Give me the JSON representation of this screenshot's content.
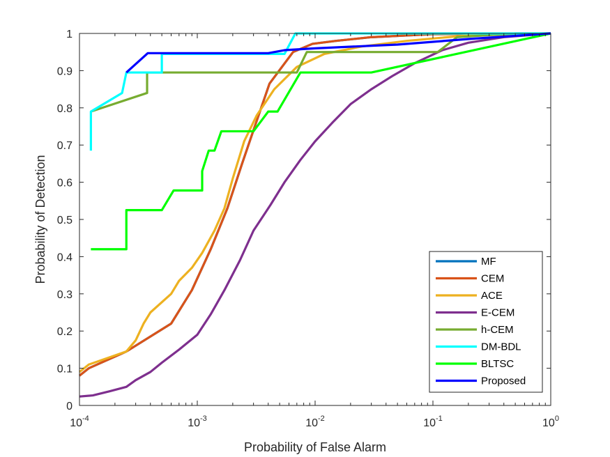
{
  "chart_data": {
    "type": "line",
    "title": "",
    "xlabel": "Probability of False Alarm",
    "ylabel": "Probability of Detection",
    "xscale": "log",
    "xlim": [
      0.0001,
      1
    ],
    "ylim": [
      0,
      1
    ],
    "grid": false,
    "legend_position": "bottom-right",
    "x_ticks": [
      {
        "base": "10",
        "exp": "-4"
      },
      {
        "base": "10",
        "exp": "-3"
      },
      {
        "base": "10",
        "exp": "-2"
      },
      {
        "base": "10",
        "exp": "-1"
      },
      {
        "base": "10",
        "exp": "0"
      }
    ],
    "x_tick_values": [
      0.0001,
      0.001,
      0.01,
      0.1,
      1
    ],
    "y_ticks": [
      "0",
      "0.1",
      "0.2",
      "0.3",
      "0.4",
      "0.5",
      "0.6",
      "0.7",
      "0.8",
      "0.9",
      "1"
    ],
    "y_tick_values": [
      0,
      0.1,
      0.2,
      0.3,
      0.4,
      0.5,
      0.6,
      0.7,
      0.8,
      0.9,
      1
    ],
    "series": [
      {
        "name": "MF",
        "color": "#0072BD",
        "points": [
          [
            0.0001,
            0.08
          ],
          [
            0.00012,
            0.1
          ],
          [
            0.00025,
            0.145
          ],
          [
            0.0006,
            0.22
          ],
          [
            0.0009,
            0.31
          ],
          [
            0.0013,
            0.42
          ],
          [
            0.0018,
            0.53
          ],
          [
            0.0024,
            0.65
          ],
          [
            0.003,
            0.74
          ],
          [
            0.0041,
            0.865
          ],
          [
            0.0065,
            0.95
          ],
          [
            0.0095,
            0.972
          ],
          [
            0.015,
            0.98
          ],
          [
            0.03,
            0.99
          ],
          [
            0.1,
            0.998
          ],
          [
            1,
            1
          ]
        ]
      },
      {
        "name": "CEM",
        "color": "#D95319",
        "points": [
          [
            0.0001,
            0.08
          ],
          [
            0.00012,
            0.1
          ],
          [
            0.00025,
            0.145
          ],
          [
            0.0006,
            0.22
          ],
          [
            0.0009,
            0.31
          ],
          [
            0.0013,
            0.42
          ],
          [
            0.0018,
            0.53
          ],
          [
            0.0024,
            0.65
          ],
          [
            0.003,
            0.74
          ],
          [
            0.0041,
            0.865
          ],
          [
            0.0065,
            0.95
          ],
          [
            0.0095,
            0.972
          ],
          [
            0.015,
            0.98
          ],
          [
            0.03,
            0.99
          ],
          [
            0.1,
            0.998
          ],
          [
            1,
            1
          ]
        ]
      },
      {
        "name": "ACE",
        "color": "#EDB120",
        "points": [
          [
            0.0001,
            0.09
          ],
          [
            0.00012,
            0.11
          ],
          [
            0.00025,
            0.145
          ],
          [
            0.0003,
            0.175
          ],
          [
            0.00035,
            0.22
          ],
          [
            0.0004,
            0.25
          ],
          [
            0.0006,
            0.3
          ],
          [
            0.0007,
            0.335
          ],
          [
            0.0009,
            0.37
          ],
          [
            0.0011,
            0.41
          ],
          [
            0.0014,
            0.47
          ],
          [
            0.0017,
            0.53
          ],
          [
            0.002,
            0.61
          ],
          [
            0.0025,
            0.71
          ],
          [
            0.0032,
            0.78
          ],
          [
            0.0045,
            0.85
          ],
          [
            0.007,
            0.91
          ],
          [
            0.012,
            0.945
          ],
          [
            0.025,
            0.965
          ],
          [
            0.06,
            0.98
          ],
          [
            0.2,
            0.995
          ],
          [
            1,
            1
          ]
        ]
      },
      {
        "name": "E-CEM",
        "color": "#7E2F8E",
        "points": [
          [
            0.0001,
            0.024
          ],
          [
            0.00013,
            0.027
          ],
          [
            0.00018,
            0.038
          ],
          [
            0.00025,
            0.05
          ],
          [
            0.0003,
            0.068
          ],
          [
            0.0004,
            0.09
          ],
          [
            0.0005,
            0.115
          ],
          [
            0.0007,
            0.15
          ],
          [
            0.001,
            0.19
          ],
          [
            0.0013,
            0.245
          ],
          [
            0.0017,
            0.31
          ],
          [
            0.0023,
            0.39
          ],
          [
            0.003,
            0.47
          ],
          [
            0.0042,
            0.54
          ],
          [
            0.0055,
            0.6
          ],
          [
            0.0075,
            0.66
          ],
          [
            0.01,
            0.71
          ],
          [
            0.014,
            0.76
          ],
          [
            0.02,
            0.81
          ],
          [
            0.03,
            0.85
          ],
          [
            0.045,
            0.885
          ],
          [
            0.07,
            0.92
          ],
          [
            0.12,
            0.955
          ],
          [
            0.2,
            0.975
          ],
          [
            0.4,
            0.99
          ],
          [
            1,
            1
          ]
        ]
      },
      {
        "name": "h-CEM",
        "color": "#77AC30",
        "points": [
          [
            0.000125,
            0.79
          ],
          [
            0.000375,
            0.84
          ],
          [
            0.000375,
            0.895
          ],
          [
            0.007,
            0.895
          ],
          [
            0.0085,
            0.95
          ],
          [
            0.11,
            0.95
          ],
          [
            0.16,
            0.99
          ],
          [
            0.5,
            1
          ],
          [
            1,
            1
          ]
        ]
      },
      {
        "name": "DM-BDL",
        "color": "#00FFFF",
        "points": [
          [
            0.000125,
            0.685
          ],
          [
            0.000125,
            0.79
          ],
          [
            0.00023,
            0.84
          ],
          [
            0.00025,
            0.895
          ],
          [
            0.0005,
            0.895
          ],
          [
            0.0005,
            0.945
          ],
          [
            0.0055,
            0.945
          ],
          [
            0.0068,
            1
          ],
          [
            1,
            1
          ]
        ]
      },
      {
        "name": "BLTSC",
        "color": "#00FF00",
        "points": [
          [
            0.000125,
            0.42
          ],
          [
            0.00025,
            0.42
          ],
          [
            0.00025,
            0.525
          ],
          [
            0.0005,
            0.525
          ],
          [
            0.00063,
            0.578
          ],
          [
            0.0011,
            0.578
          ],
          [
            0.0011,
            0.63
          ],
          [
            0.00125,
            0.685
          ],
          [
            0.0014,
            0.685
          ],
          [
            0.0016,
            0.737
          ],
          [
            0.003,
            0.737
          ],
          [
            0.004,
            0.79
          ],
          [
            0.0048,
            0.79
          ],
          [
            0.0075,
            0.895
          ],
          [
            0.03,
            0.895
          ],
          [
            1,
            1
          ]
        ]
      },
      {
        "name": "Proposed",
        "color": "#0000FF",
        "points": [
          [
            0.00025,
            0.895
          ],
          [
            0.00038,
            0.947
          ],
          [
            0.004,
            0.947
          ],
          [
            0.0055,
            0.955
          ],
          [
            0.01,
            0.96
          ],
          [
            0.05,
            0.97
          ],
          [
            0.2,
            0.985
          ],
          [
            1,
            1
          ]
        ]
      }
    ]
  }
}
